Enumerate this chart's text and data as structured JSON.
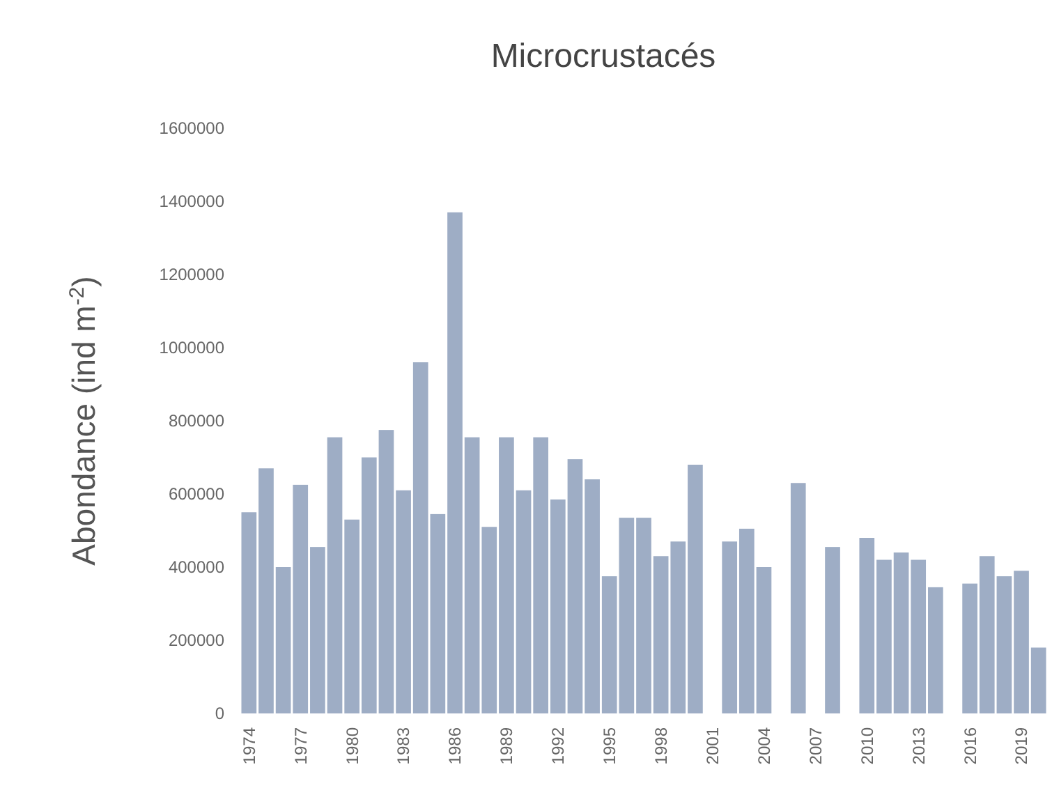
{
  "chart_data": {
    "type": "bar",
    "title": "Microcrustacés",
    "ylabel": "Abondance (ind m$^{-2}$)",
    "categories": [
      "1974",
      null,
      null,
      "1977",
      null,
      null,
      "1980",
      null,
      null,
      "1983",
      null,
      null,
      "1986",
      null,
      null,
      "1989",
      null,
      null,
      "1992",
      null,
      null,
      "1995",
      null,
      null,
      "1998",
      null,
      null,
      "2001",
      null,
      null,
      "2004",
      null,
      null,
      "2007",
      null,
      null,
      "2010",
      null,
      null,
      "2013",
      null,
      null,
      "2016",
      null,
      null,
      "2019",
      null
    ],
    "values": [
      550000,
      670000,
      400000,
      625000,
      455000,
      755000,
      530000,
      700000,
      775000,
      610000,
      960000,
      545000,
      1370000,
      755000,
      510000,
      755000,
      610000,
      755000,
      585000,
      695000,
      640000,
      375000,
      535000,
      535000,
      430000,
      470000,
      680000,
      null,
      470000,
      505000,
      400000,
      null,
      630000,
      null,
      455000,
      null,
      480000,
      420000,
      440000,
      420000,
      345000,
      null,
      355000,
      430000,
      375000,
      390000,
      180000
    ],
    "color": "#9eadc5",
    "ylim": [
      0,
      1600000
    ],
    "yticks": [
      0,
      200000,
      400000,
      600000,
      800000,
      1000000,
      1200000,
      1400000,
      1600000
    ],
    "grid": false
  }
}
